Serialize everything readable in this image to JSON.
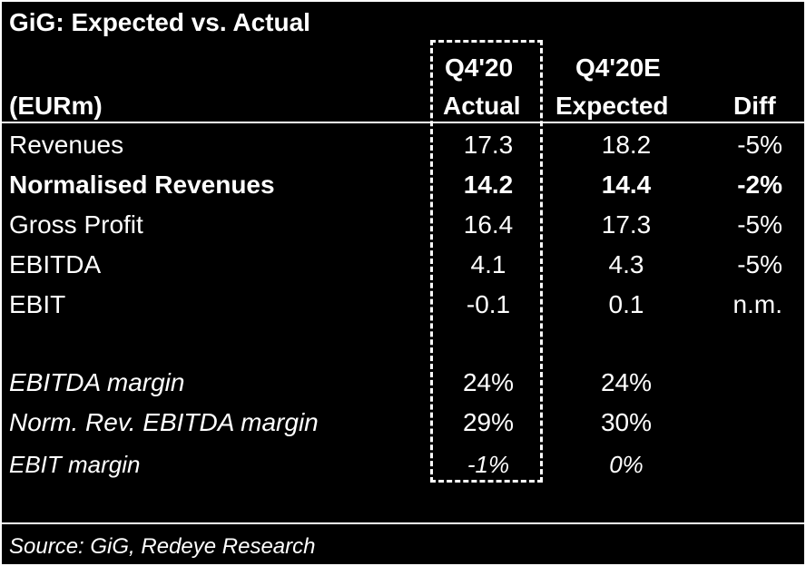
{
  "title": "GiG: Expected vs. Actual",
  "header": {
    "unit": "(EURm)",
    "col_actual_line1": "Q4'20",
    "col_actual_line2": "Actual",
    "col_expected_line1": "Q4'20E",
    "col_expected_line2": "Expected",
    "col_diff": "Diff"
  },
  "rows": [
    {
      "label": "Revenues",
      "actual": "17.3",
      "expected": "18.2",
      "diff": "-5%"
    },
    {
      "label": "Normalised Revenues",
      "actual": "14.2",
      "expected": "14.4",
      "diff": "-2%"
    },
    {
      "label": "Gross Profit",
      "actual": "16.4",
      "expected": "17.3",
      "diff": "-5%"
    },
    {
      "label": "EBITDA",
      "actual": "4.1",
      "expected": "4.3",
      "diff": "-5%"
    },
    {
      "label": "EBIT",
      "actual": "-0.1",
      "expected": "0.1",
      "diff": "n.m."
    }
  ],
  "margins": [
    {
      "label": "EBITDA margin",
      "actual": "24%",
      "expected": "24%"
    },
    {
      "label": "Norm. Rev. EBITDA margin",
      "actual": "29%",
      "expected": "30%"
    },
    {
      "label": "EBIT margin",
      "actual": "-1%",
      "expected": "0%"
    }
  ],
  "source": "Source: GiG, Redeye Research",
  "colors": {
    "background": "#000000",
    "text": "#ffffff"
  }
}
